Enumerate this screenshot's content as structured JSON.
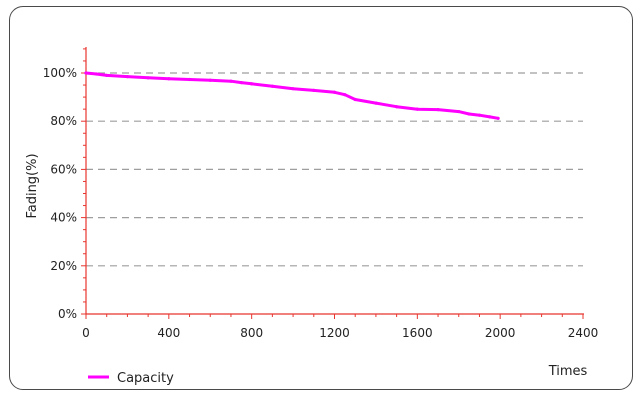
{
  "chart_data": {
    "type": "line",
    "ylabel": "Fading(%)",
    "xlabel": "Times",
    "xlim": [
      0,
      2400
    ],
    "ylim": [
      0,
      110
    ],
    "x_ticks": [
      0,
      400,
      800,
      1200,
      1600,
      2000,
      2400
    ],
    "y_ticks": [
      0,
      20,
      40,
      60,
      80,
      100
    ],
    "y_tick_suffix": "%",
    "grid": "horizontal dashed",
    "legend_position": "bottom-left",
    "colors": {
      "series": "#ff00ff",
      "axes": "#e8352f",
      "grid": "#9e9e9e"
    },
    "series": [
      {
        "name": "Capacity",
        "x": [
          0,
          50,
          100,
          200,
          300,
          400,
          500,
          600,
          700,
          750,
          800,
          900,
          1000,
          1100,
          1200,
          1250,
          1300,
          1400,
          1500,
          1600,
          1700,
          1800,
          1850,
          1900,
          1950,
          1990
        ],
        "y": [
          100,
          99.6,
          99,
          98.5,
          98,
          97.6,
          97.3,
          97,
          96.6,
          96,
          95.5,
          94.5,
          93.5,
          92.8,
          92,
          91,
          89,
          87.5,
          86,
          85,
          84.8,
          84,
          83,
          82.5,
          81.8,
          81.2
        ]
      }
    ]
  }
}
